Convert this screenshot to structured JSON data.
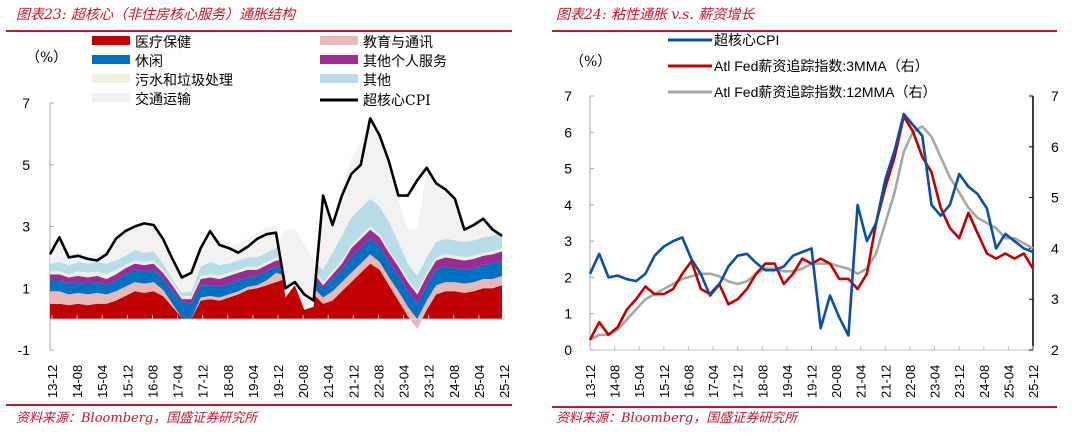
{
  "left": {
    "title": "图表23:  超核心（非住房核心服务）通胀结构",
    "source": "资料来源：Bloomberg，国盛证券研究所",
    "unit_label": "（%）"
  },
  "right": {
    "title": "图表24:  粘性通胀  v.s.  薪资增长",
    "source": "资料来源：Bloomberg，国盛证券研究所",
    "unit_label": "（%）"
  },
  "chart_data": [
    {
      "type": "area",
      "title": "图表23: 超核心（非住房核心服务）通胀结构",
      "ylabel": "（%）",
      "ylim": [
        -1,
        7
      ],
      "yticks": [
        "-1",
        "1",
        "3",
        "5",
        "7"
      ],
      "ytick_values": [
        -1,
        1,
        3,
        5,
        7
      ],
      "xtick_labels": [
        "13-12",
        "14-08",
        "15-04",
        "15-12",
        "16-08",
        "17-04",
        "17-12",
        "18-08",
        "19-04",
        "19-12",
        "20-08",
        "21-04",
        "21-12",
        "22-08",
        "23-04",
        "23-12",
        "24-08",
        "25-04",
        "25-12"
      ],
      "x": [
        "13-12",
        "14-03",
        "14-06",
        "14-09",
        "14-12",
        "15-03",
        "15-06",
        "15-09",
        "15-12",
        "16-03",
        "16-06",
        "16-09",
        "16-12",
        "17-03",
        "17-06",
        "17-09",
        "17-12",
        "18-03",
        "18-06",
        "18-09",
        "18-12",
        "19-03",
        "19-06",
        "19-09",
        "19-12",
        "20-03",
        "20-06",
        "20-09",
        "20-12",
        "21-03",
        "21-06",
        "21-09",
        "21-12",
        "22-03",
        "22-06",
        "22-09",
        "22-12",
        "23-03",
        "23-06",
        "23-09",
        "23-12",
        "24-03",
        "24-06",
        "24-09",
        "24-12",
        "25-03",
        "25-06",
        "25-09",
        "25-12"
      ],
      "stacked": true,
      "legend": "top",
      "series": [
        {
          "name": "医疗保健",
          "color": "#c00000",
          "values": [
            0.5,
            0.5,
            0.45,
            0.5,
            0.45,
            0.5,
            0.5,
            0.6,
            0.75,
            0.9,
            0.85,
            0.9,
            0.75,
            0.4,
            0.05,
            0.0,
            0.6,
            0.65,
            0.6,
            0.7,
            0.8,
            0.95,
            1.0,
            1.1,
            1.2,
            1.3,
            1.2,
            1.0,
            0.8,
            0.5,
            0.6,
            0.9,
            1.2,
            1.5,
            1.8,
            1.6,
            1.1,
            0.6,
            0.1,
            -0.3,
            0.3,
            0.8,
            0.9,
            0.9,
            0.85,
            0.9,
            1.0,
            1.0,
            1.1
          ]
        },
        {
          "name": "教育与通讯",
          "color": "#e6b8b7",
          "values": [
            0.4,
            0.4,
            0.35,
            0.35,
            0.35,
            0.35,
            0.3,
            0.3,
            0.3,
            0.3,
            0.3,
            0.3,
            0.2,
            0.1,
            0.0,
            0.0,
            0.1,
            0.1,
            0.1,
            0.1,
            0.1,
            0.1,
            0.1,
            0.15,
            0.3,
            0.1,
            0.1,
            0.2,
            0.2,
            0.2,
            0.3,
            0.3,
            0.3,
            0.3,
            0.3,
            0.25,
            0.25,
            0.3,
            0.3,
            0.3,
            0.3,
            0.3,
            0.3,
            0.3,
            0.3,
            0.3,
            0.3,
            0.3,
            0.3
          ]
        },
        {
          "name": "休闲",
          "color": "#0070c0",
          "values": [
            0.35,
            0.35,
            0.35,
            0.35,
            0.35,
            0.35,
            0.3,
            0.35,
            0.4,
            0.4,
            0.4,
            0.4,
            0.35,
            0.4,
            0.5,
            0.5,
            0.4,
            0.35,
            0.35,
            0.35,
            0.35,
            0.3,
            0.3,
            0.3,
            0.2,
            0.3,
            0.3,
            0.3,
            0.3,
            0.3,
            0.4,
            0.4,
            0.5,
            0.5,
            0.5,
            0.5,
            0.5,
            0.5,
            0.5,
            0.5,
            0.5,
            0.5,
            0.5,
            0.45,
            0.45,
            0.45,
            0.45,
            0.5,
            0.5
          ]
        },
        {
          "name": "其他个人服务",
          "color": "#9e2a96",
          "values": [
            0.2,
            0.2,
            0.2,
            0.2,
            0.2,
            0.2,
            0.2,
            0.2,
            0.2,
            0.2,
            0.2,
            0.2,
            0.2,
            0.2,
            0.1,
            0.15,
            0.2,
            0.25,
            0.25,
            0.25,
            0.25,
            0.25,
            0.2,
            0.2,
            0.2,
            0.2,
            0.2,
            0.2,
            0.2,
            0.1,
            0.15,
            0.2,
            0.3,
            0.3,
            0.3,
            0.3,
            0.3,
            0.3,
            0.3,
            0.3,
            0.3,
            0.3,
            0.3,
            0.3,
            0.3,
            0.3,
            0.3,
            0.3,
            0.3
          ]
        },
        {
          "name": "污水和垃圾处理",
          "color": "#ebf1de",
          "values": [
            0.1,
            0.1,
            0.1,
            0.15,
            0.15,
            0.15,
            0.15,
            0.15,
            0.1,
            0.1,
            0.1,
            0.1,
            0.1,
            0.1,
            0.1,
            0.1,
            0.1,
            0.1,
            0.1,
            0.1,
            0.1,
            0.1,
            0.1,
            0.1,
            0.1,
            0.1,
            0.1,
            0.1,
            0.1,
            0.1,
            0.1,
            0.1,
            0.1,
            0.1,
            0.1,
            0.1,
            0.1,
            0.1,
            0.1,
            0.1,
            0.1,
            0.1,
            0.1,
            0.1,
            0.1,
            0.1,
            0.1,
            0.1,
            0.1
          ]
        },
        {
          "name": "其他",
          "color": "#b7dde8",
          "values": [
            0.25,
            0.3,
            0.3,
            0.3,
            0.3,
            0.3,
            0.35,
            0.3,
            0.3,
            0.35,
            0.3,
            0.3,
            0.2,
            0.1,
            0.1,
            0.15,
            0.3,
            0.4,
            0.35,
            0.3,
            0.3,
            0.3,
            0.3,
            0.3,
            0.3,
            0.9,
            1.0,
            0.6,
            0.3,
            0.4,
            0.6,
            0.8,
            0.9,
            0.9,
            0.9,
            0.9,
            0.9,
            0.7,
            0.5,
            0.5,
            0.5,
            0.5,
            0.5,
            0.5,
            0.5,
            0.5,
            0.5,
            0.5,
            0.5
          ]
        },
        {
          "name": "交通运输",
          "color": "#f2f2f2",
          "values": [
            0.3,
            0.8,
            0.35,
            0.3,
            0.25,
            0.25,
            0.4,
            0.75,
            0.8,
            0.75,
            0.95,
            0.85,
            0.8,
            0.6,
            0.5,
            0.6,
            0.6,
            1.0,
            0.8,
            0.6,
            0.55,
            0.6,
            0.8,
            0.85,
            0.7,
            -2.2,
            -1.8,
            -2.1,
            -1.5,
            2.3,
            0.9,
            1.6,
            1.9,
            2.1,
            2.6,
            2.3,
            1.8,
            1.3,
            1.1,
            1.5,
            2.8,
            1.8,
            1.6,
            1.4,
            0.5,
            0.6,
            0.7,
            0.4,
            0.0
          ]
        }
      ],
      "line_series": {
        "name": "超核心CPI",
        "color": "#000000",
        "values": [
          2.1,
          2.65,
          2.0,
          2.05,
          1.95,
          1.9,
          2.1,
          2.6,
          2.85,
          3.0,
          3.1,
          3.05,
          2.6,
          1.95,
          1.35,
          1.5,
          2.3,
          2.85,
          2.4,
          2.3,
          2.15,
          2.35,
          2.6,
          2.75,
          2.8,
          1.0,
          1.2,
          0.8,
          0.6,
          4.0,
          3.05,
          4.0,
          4.7,
          5.0,
          6.5,
          5.95,
          5.1,
          4.0,
          4.0,
          4.5,
          4.9,
          4.4,
          4.2,
          3.9,
          2.9,
          3.05,
          3.25,
          2.9,
          2.7
        ]
      }
    },
    {
      "type": "line",
      "title": "图表24: 粘性通胀 v.s. 薪资增长",
      "ylabel": "（%）",
      "ylim": [
        0,
        7
      ],
      "y2lim": [
        2,
        7
      ],
      "yticks": [
        "0",
        "1",
        "2",
        "3",
        "4",
        "5",
        "6",
        "7"
      ],
      "ytick_values": [
        0,
        1,
        2,
        3,
        4,
        5,
        6,
        7
      ],
      "y2ticks": [
        "2",
        "3",
        "4",
        "5",
        "6",
        "7"
      ],
      "y2tick_values": [
        2,
        3,
        4,
        5,
        6,
        7
      ],
      "xtick_labels": [
        "13-12",
        "14-08",
        "15-04",
        "15-12",
        "16-08",
        "17-04",
        "17-12",
        "18-08",
        "19-04",
        "19-12",
        "20-08",
        "21-04",
        "21-12",
        "22-08",
        "23-04",
        "23-12",
        "24-08",
        "25-04",
        "25-12"
      ],
      "x": [
        "13-12",
        "14-03",
        "14-06",
        "14-09",
        "14-12",
        "15-03",
        "15-06",
        "15-09",
        "15-12",
        "16-03",
        "16-06",
        "16-09",
        "16-12",
        "17-03",
        "17-06",
        "17-09",
        "17-12",
        "18-03",
        "18-06",
        "18-09",
        "18-12",
        "19-03",
        "19-06",
        "19-09",
        "19-12",
        "20-03",
        "20-06",
        "20-09",
        "20-12",
        "21-03",
        "21-06",
        "21-09",
        "21-12",
        "22-03",
        "22-06",
        "22-09",
        "22-12",
        "23-03",
        "23-06",
        "23-09",
        "23-12",
        "24-03",
        "24-06",
        "24-09",
        "24-12",
        "25-03",
        "25-06",
        "25-09",
        "25-12"
      ],
      "legend": "top",
      "series": [
        {
          "name": "超核心CPI",
          "axis": "left",
          "color": "#0b4ea2",
          "values": [
            2.1,
            2.65,
            2.0,
            2.05,
            1.95,
            1.9,
            2.1,
            2.6,
            2.85,
            3.0,
            3.1,
            2.5,
            2.1,
            1.5,
            1.8,
            2.3,
            2.6,
            2.65,
            2.4,
            2.2,
            2.2,
            2.3,
            2.6,
            2.7,
            2.8,
            0.6,
            1.5,
            0.9,
            0.4,
            4.0,
            3.0,
            3.5,
            4.7,
            5.5,
            6.5,
            6.2,
            5.9,
            4.0,
            3.7,
            4.0,
            4.85,
            4.5,
            4.3,
            3.9,
            2.8,
            3.2,
            3.0,
            2.8,
            2.7
          ]
        },
        {
          "name": "Atl Fed薪资追踪指数:3MMA（右）",
          "axis": "right",
          "color": "#c00000",
          "values": [
            2.2,
            2.55,
            2.3,
            2.45,
            2.8,
            3.0,
            3.25,
            3.1,
            3.1,
            3.2,
            3.5,
            3.75,
            3.2,
            3.1,
            3.3,
            2.9,
            3.0,
            3.2,
            3.5,
            3.7,
            3.7,
            3.3,
            3.5,
            3.8,
            3.7,
            3.8,
            3.7,
            3.4,
            3.4,
            3.2,
            3.5,
            4.5,
            5.2,
            5.8,
            6.6,
            6.3,
            5.8,
            5.5,
            4.8,
            4.4,
            4.2,
            4.7,
            4.3,
            3.9,
            3.8,
            3.9,
            3.8,
            3.9,
            3.6
          ]
        },
        {
          "name": "Atl Fed薪资追踪指数:12MMA（右）",
          "axis": "right",
          "color": "#a6a6a6",
          "values": [
            2.2,
            2.3,
            2.3,
            2.4,
            2.6,
            2.8,
            3.0,
            3.1,
            3.2,
            3.3,
            3.4,
            3.45,
            3.5,
            3.5,
            3.45,
            3.35,
            3.3,
            3.35,
            3.5,
            3.6,
            3.6,
            3.55,
            3.55,
            3.6,
            3.7,
            3.7,
            3.7,
            3.65,
            3.6,
            3.5,
            3.6,
            3.9,
            4.5,
            5.1,
            5.9,
            6.3,
            6.4,
            6.2,
            5.8,
            5.4,
            5.1,
            4.8,
            4.6,
            4.5,
            4.4,
            4.2,
            4.2,
            4.1,
            4.0
          ]
        }
      ]
    }
  ]
}
